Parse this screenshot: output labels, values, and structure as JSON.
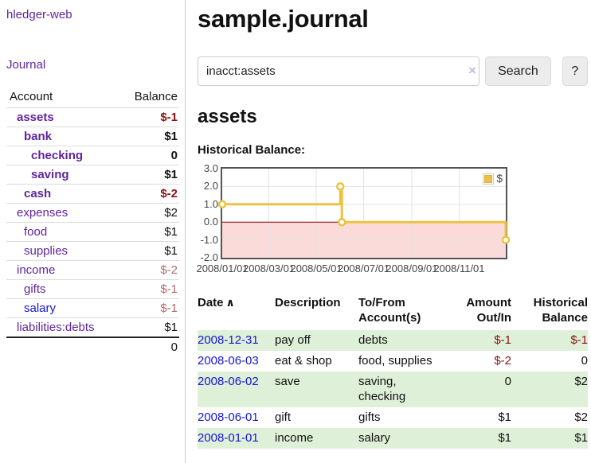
{
  "app": {
    "brand": "hledger-web",
    "nav_journal": "Journal"
  },
  "colors": {
    "link_purple": "#5f259f",
    "link_blue": "#1515d2",
    "negative_strong": "#8b1212",
    "negative_soft": "#b26b6b",
    "row_highlight_green": "#dff0d8",
    "series_gold": "#EDC240"
  },
  "sidebar": {
    "header": {
      "account": "Account",
      "balance": "Balance"
    },
    "accounts": [
      {
        "name": "assets",
        "depth": 1,
        "bold": true,
        "link_color": "purple",
        "balance": "$-1",
        "balance_tone": "red"
      },
      {
        "name": "bank",
        "depth": 2,
        "bold": true,
        "link_color": "purple",
        "balance": "$1",
        "balance_tone": "plain"
      },
      {
        "name": "checking",
        "depth": 3,
        "bold": true,
        "link_color": "purple",
        "balance": "0",
        "balance_tone": "plain"
      },
      {
        "name": "saving",
        "depth": 3,
        "bold": true,
        "link_color": "purple",
        "balance": "$1",
        "balance_tone": "plain"
      },
      {
        "name": "cash",
        "depth": 2,
        "bold": true,
        "link_color": "purple",
        "balance": "$-2",
        "balance_tone": "red"
      },
      {
        "name": "expenses",
        "depth": 1,
        "bold": false,
        "link_color": "purple",
        "balance": "$2",
        "balance_tone": "plain"
      },
      {
        "name": "food",
        "depth": 2,
        "bold": false,
        "link_color": "purple",
        "balance": "$1",
        "balance_tone": "plain"
      },
      {
        "name": "supplies",
        "depth": 2,
        "bold": false,
        "link_color": "purple",
        "balance": "$1",
        "balance_tone": "plain"
      },
      {
        "name": "income",
        "depth": 1,
        "bold": false,
        "link_color": "purple",
        "balance": "$-2",
        "balance_tone": "rose"
      },
      {
        "name": "gifts",
        "depth": 2,
        "bold": false,
        "link_color": "purple",
        "balance": "$-1",
        "balance_tone": "rose"
      },
      {
        "name": "salary",
        "depth": 2,
        "bold": false,
        "link_color": "blue",
        "balance": "$-1",
        "balance_tone": "rose"
      },
      {
        "name": "liabilities:debts",
        "depth": 1,
        "bold": false,
        "link_color": "purple",
        "balance": "$1",
        "balance_tone": "plain"
      }
    ],
    "total": "0"
  },
  "main": {
    "title": "sample.journal",
    "search": {
      "value": "inacct:assets",
      "clear_icon": "×",
      "button": "Search",
      "help_button": "?"
    },
    "account_heading": "assets",
    "chart_label": "Historical Balance:"
  },
  "chart_data": {
    "type": "line",
    "title": "Historical Balance",
    "step": "after",
    "series": [
      {
        "name": "$",
        "color": "#EDC240",
        "points": [
          [
            "2008-01-01",
            1
          ],
          [
            "2008-06-01",
            2
          ],
          [
            "2008-06-03",
            0
          ],
          [
            "2008-12-31",
            -1
          ]
        ]
      }
    ],
    "x_min": "2008-01-01",
    "x_max": "2008-12-31",
    "ylim": [
      -2,
      3
    ],
    "yticks": [
      {
        "label": "3.0",
        "value": 3
      },
      {
        "label": "2.0",
        "value": 2
      },
      {
        "label": "1.0",
        "value": 1
      },
      {
        "label": "0.0",
        "value": 0
      },
      {
        "label": "-1.0",
        "value": -1
      },
      {
        "label": "-2.0",
        "value": -2
      }
    ],
    "xticks": [
      {
        "label": "2008/01/01",
        "date": "2008-01-01"
      },
      {
        "label": "2008/03/01",
        "date": "2008-03-01"
      },
      {
        "label": "2008/05/01",
        "date": "2008-05-01"
      },
      {
        "label": "2008/07/01",
        "date": "2008-07-01"
      },
      {
        "label": "2008/09/01",
        "date": "2008-09-01"
      },
      {
        "label": "2008/11/01",
        "date": "2008-11-01"
      }
    ],
    "legend": {
      "label": "$",
      "position": "top-right"
    },
    "grid": true,
    "colors": {
      "grid": "#e3e3e3",
      "border": "#545454",
      "zero_line": "#8b0000",
      "below_zero_fill": "#fbdada",
      "marker_fill": "#ffffff",
      "legend_swatch_border": "#d8b23a"
    }
  },
  "register": {
    "columns": {
      "date": "Date",
      "description": "Description",
      "accounts": "To/From Account(s)",
      "amount": "Amount Out/In",
      "balance": "Historical Balance"
    },
    "sort_icon": "∧",
    "rows": [
      {
        "date": "2008-12-31",
        "description": "pay off",
        "accounts": "debts",
        "amount": "$-1",
        "amount_tone": "neg",
        "balance": "$-1",
        "balance_tone": "neg",
        "shaded": true
      },
      {
        "date": "2008-06-03",
        "description": "eat & shop",
        "accounts": "food, supplies",
        "amount": "$-2",
        "amount_tone": "neg",
        "balance": "0",
        "balance_tone": "plain",
        "shaded": false
      },
      {
        "date": "2008-06-02",
        "description": "save",
        "accounts": "saving, checking",
        "amount": "0",
        "amount_tone": "plain",
        "balance": "$2",
        "balance_tone": "plain",
        "shaded": true
      },
      {
        "date": "2008-06-01",
        "description": "gift",
        "accounts": "gifts",
        "amount": "$1",
        "amount_tone": "plain",
        "balance": "$2",
        "balance_tone": "plain",
        "shaded": false
      },
      {
        "date": "2008-01-01",
        "description": "income",
        "accounts": "salary",
        "amount": "$1",
        "amount_tone": "plain",
        "balance": "$1",
        "balance_tone": "plain",
        "shaded": true
      }
    ]
  }
}
